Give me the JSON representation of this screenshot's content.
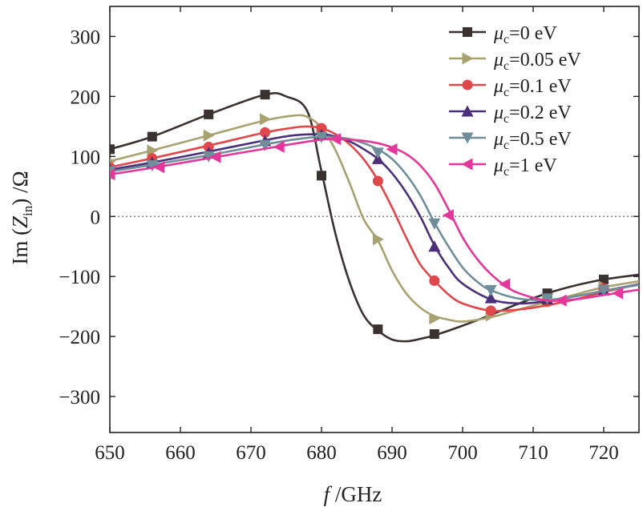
{
  "chart_data": {
    "type": "line",
    "title": "",
    "xlabel": {
      "italic": "f",
      "rest": " /GHz"
    },
    "ylabel": {
      "prefix": "Im (",
      "italic": "Z",
      "sub": "in",
      "suffix": ") /Ω"
    },
    "xlim": [
      650,
      725
    ],
    "ylim": [
      -360,
      350
    ],
    "xticks": [
      650,
      660,
      670,
      680,
      690,
      700,
      710,
      720
    ],
    "yticks": [
      300,
      200,
      100,
      0,
      -100,
      -200,
      -300
    ],
    "xtick_labels": [
      "650",
      "660",
      "670",
      "680",
      "690",
      "700",
      "710",
      "720"
    ],
    "ytick_labels": [
      "300",
      "200",
      "100",
      "0",
      "−100",
      "−200",
      "−300"
    ],
    "zero_line": true,
    "legend_position": "top-right",
    "series": [
      {
        "name": "μc=0 eV",
        "label": {
          "sym": "μ",
          "sub": "c",
          "rest": "=0 eV"
        },
        "color": "#3a3230",
        "marker": "square",
        "x": [
          650,
          656,
          664,
          672,
          675,
          678,
          680,
          682,
          684,
          686,
          688,
          690,
          692,
          694,
          696,
          700,
          704,
          708,
          712,
          716,
          720,
          725
        ],
        "y": [
          112,
          133,
          170,
          203,
          200,
          175,
          75,
          -30,
          -110,
          -165,
          -190,
          -205,
          -208,
          -204,
          -198,
          -182,
          -164,
          -145,
          -128,
          -115,
          -105,
          -97
        ],
        "marker_x": [
          650,
          656,
          664,
          672,
          680,
          688,
          696,
          712,
          720
        ],
        "marker_y": [
          112,
          133,
          170,
          203,
          68,
          -188,
          -196,
          -128,
          -105
        ]
      },
      {
        "name": "μc=0.05 eV",
        "label": {
          "sym": "μ",
          "sub": "c",
          "rest": "=0.05 eV"
        },
        "color": "#a8a272",
        "marker": "triangle-right",
        "x": [
          650,
          656,
          664,
          672,
          676,
          678,
          680,
          682,
          684,
          686,
          688,
          690,
          692,
          694,
          696,
          698,
          700,
          704,
          708,
          712,
          716,
          720,
          725
        ],
        "y": [
          92,
          110,
          135,
          160,
          168,
          166,
          148,
          110,
          55,
          -5,
          -40,
          -90,
          -128,
          -152,
          -166,
          -172,
          -175,
          -168,
          -155,
          -142,
          -130,
          -118,
          -108
        ],
        "marker_x": [
          650,
          656,
          664,
          672,
          680,
          688,
          696,
          704,
          712,
          720
        ],
        "marker_y": [
          92,
          110,
          135,
          162,
          146,
          -38,
          -170,
          -165,
          -141,
          -117
        ]
      },
      {
        "name": "μc=0.1 eV",
        "label": {
          "sym": "μ",
          "sub": "c",
          "rest": "=0.1 eV"
        },
        "color": "#e0474a",
        "marker": "circle",
        "x": [
          650,
          656,
          664,
          672,
          676,
          678,
          680,
          682,
          684,
          686,
          688,
          690,
          692,
          694,
          696,
          698,
          700,
          704,
          708,
          712,
          716,
          720,
          725
        ],
        "y": [
          82,
          97,
          118,
          140,
          148,
          150,
          147,
          137,
          120,
          95,
          60,
          15,
          -35,
          -80,
          -107,
          -130,
          -145,
          -157,
          -155,
          -148,
          -138,
          -126,
          -113
        ],
        "marker_x": [
          650,
          656,
          664,
          672,
          680,
          688,
          696,
          704,
          712,
          720
        ],
        "marker_y": [
          82,
          97,
          116,
          140,
          147,
          59,
          -107,
          -157,
          -142,
          -120
        ]
      },
      {
        "name": "μc=0.2 eV",
        "label": {
          "sym": "μ",
          "sub": "c",
          "rest": "=0.2 eV"
        },
        "color": "#4b2f7a",
        "marker": "triangle-up",
        "x": [
          650,
          656,
          664,
          672,
          676,
          680,
          682,
          684,
          686,
          688,
          690,
          692,
          694,
          696,
          698,
          700,
          704,
          708,
          712,
          716,
          720,
          725
        ],
        "y": [
          78,
          90,
          108,
          127,
          135,
          137,
          133,
          125,
          112,
          96,
          72,
          40,
          0,
          -48,
          -85,
          -112,
          -138,
          -145,
          -141,
          -133,
          -124,
          -113
        ],
        "marker_x": [
          650,
          656,
          664,
          672,
          680,
          688,
          696,
          704,
          712,
          720
        ],
        "marker_y": [
          78,
          90,
          106,
          126,
          136,
          96,
          -50,
          -136,
          -138,
          -123
        ]
      },
      {
        "name": "μc=0.5 eV",
        "label": {
          "sym": "μ",
          "sub": "c",
          "rest": "=0.5 eV"
        },
        "color": "#6f8e9a",
        "marker": "triangle-down",
        "x": [
          650,
          656,
          664,
          672,
          676,
          680,
          682,
          684,
          686,
          688,
          690,
          692,
          694,
          696,
          698,
          700,
          702,
          704,
          708,
          712,
          716,
          720,
          725
        ],
        "y": [
          75,
          86,
          102,
          120,
          128,
          133,
          132,
          129,
          122,
          112,
          96,
          70,
          35,
          -10,
          -50,
          -85,
          -108,
          -123,
          -137,
          -139,
          -133,
          -124,
          -114
        ],
        "marker_x": [
          650,
          656,
          664,
          672,
          680,
          688,
          696,
          704,
          712,
          720
        ],
        "marker_y": [
          75,
          85,
          100,
          119,
          132,
          106,
          -12,
          -123,
          -137,
          -123
        ]
      },
      {
        "name": "μc=1 eV",
        "label": {
          "sym": "μ",
          "sub": "c",
          "rest": "=1 eV"
        },
        "color": "#e4379b",
        "marker": "triangle-left",
        "x": [
          650,
          656,
          664,
          672,
          676,
          680,
          682,
          684,
          686,
          688,
          690,
          692,
          694,
          696,
          698,
          700,
          702,
          704,
          706,
          708,
          712,
          716,
          720,
          725
        ],
        "y": [
          70,
          81,
          97,
          113,
          121,
          128,
          129,
          128,
          126,
          122,
          115,
          104,
          85,
          55,
          12,
          -35,
          -70,
          -96,
          -115,
          -128,
          -140,
          -138,
          -131,
          -122
        ],
        "marker_x": [
          650,
          657,
          665,
          674,
          682,
          690,
          698,
          706,
          714,
          722
        ],
        "marker_y": [
          70,
          82,
          99,
          116,
          129,
          112,
          2,
          -113,
          -140,
          -128
        ]
      }
    ]
  }
}
